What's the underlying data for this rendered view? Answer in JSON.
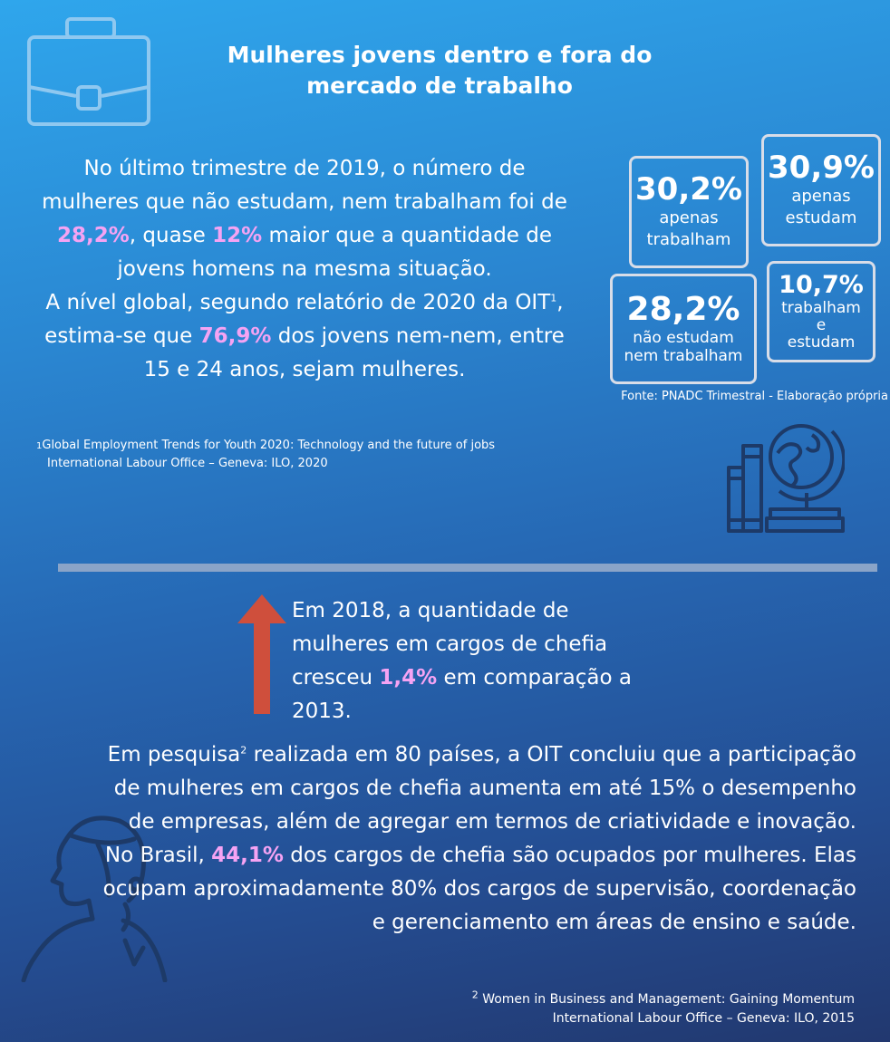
{
  "title_line1": "Mulheres jovens dentro e fora do",
  "title_line2": "mercado de trabalho",
  "intro": {
    "t1": "No último trimestre de 2019, o número de mulheres que não estudam, nem trabalham foi de ",
    "h1": "28,2%",
    "t2": ", quase ",
    "h2": "12%",
    "t3": " maior que a quantidade de jovens homens na mesma situação.",
    "t4": "A nível global, segundo relatório de 2020 da OIT",
    "sup": "1",
    "t5": ", estima-se que ",
    "h3": "76,9%",
    "t6": " dos jovens nem-nem, entre 15 e 24 anos, sejam mulheres."
  },
  "footnote1": {
    "mark": "1",
    "line1": "Global Employment Trends for Youth 2020: Technology and the future of jobs",
    "line2": "International Labour Office – Geneva: ILO, 2020"
  },
  "stats": {
    "work": {
      "value": "30,2%",
      "label1": "apenas",
      "label2": "trabalham"
    },
    "study": {
      "value": "30,9%",
      "label1": "apenas",
      "label2": "estudam"
    },
    "neither": {
      "value": "28,2%",
      "label1": "não estudam",
      "label2": "nem trabalham"
    },
    "both": {
      "value": "10,7%",
      "label1": "trabalham",
      "label2": "e",
      "label3": "estudam"
    }
  },
  "source": "Fonte: PNADC Trimestral - Elaboração própria",
  "growth": {
    "t1": "Em 2018, a quantidade de mulheres em cargos de chefia cresceu ",
    "h1": "1,4%",
    "t2": " em comparação a 2013."
  },
  "para2": {
    "t1": "Em pesquisa",
    "sup": "2",
    "t2": " realizada em 80 países, a OIT concluiu que a participação de mulheres em cargos de chefia aumenta em até 15% o desempenho de empresas, além de agregar em termos de criatividade e inovação.",
    "t3": "No Brasil, ",
    "h1": "44,1%",
    "t4": " dos cargos de chefia são ocupados por mulheres. Elas ocupam aproximadamente 80% dos cargos de supervisão, coordenação e gerenciamento em áreas de ensino e saúde."
  },
  "footnote2": {
    "mark": "2",
    "line1": "Women in Business and Management: Gaining Momentum",
    "line2": "International Labour Office – Geneva: ILO, 2015"
  },
  "colors": {
    "highlight": "#f5a3f3",
    "arrow": "#cf4f3c",
    "icon": "#1d3a68",
    "briefcase": "#8fc8f0"
  },
  "icons": [
    "briefcase-icon",
    "globe-books-icon",
    "up-arrow-icon",
    "woman-profile-icon"
  ]
}
